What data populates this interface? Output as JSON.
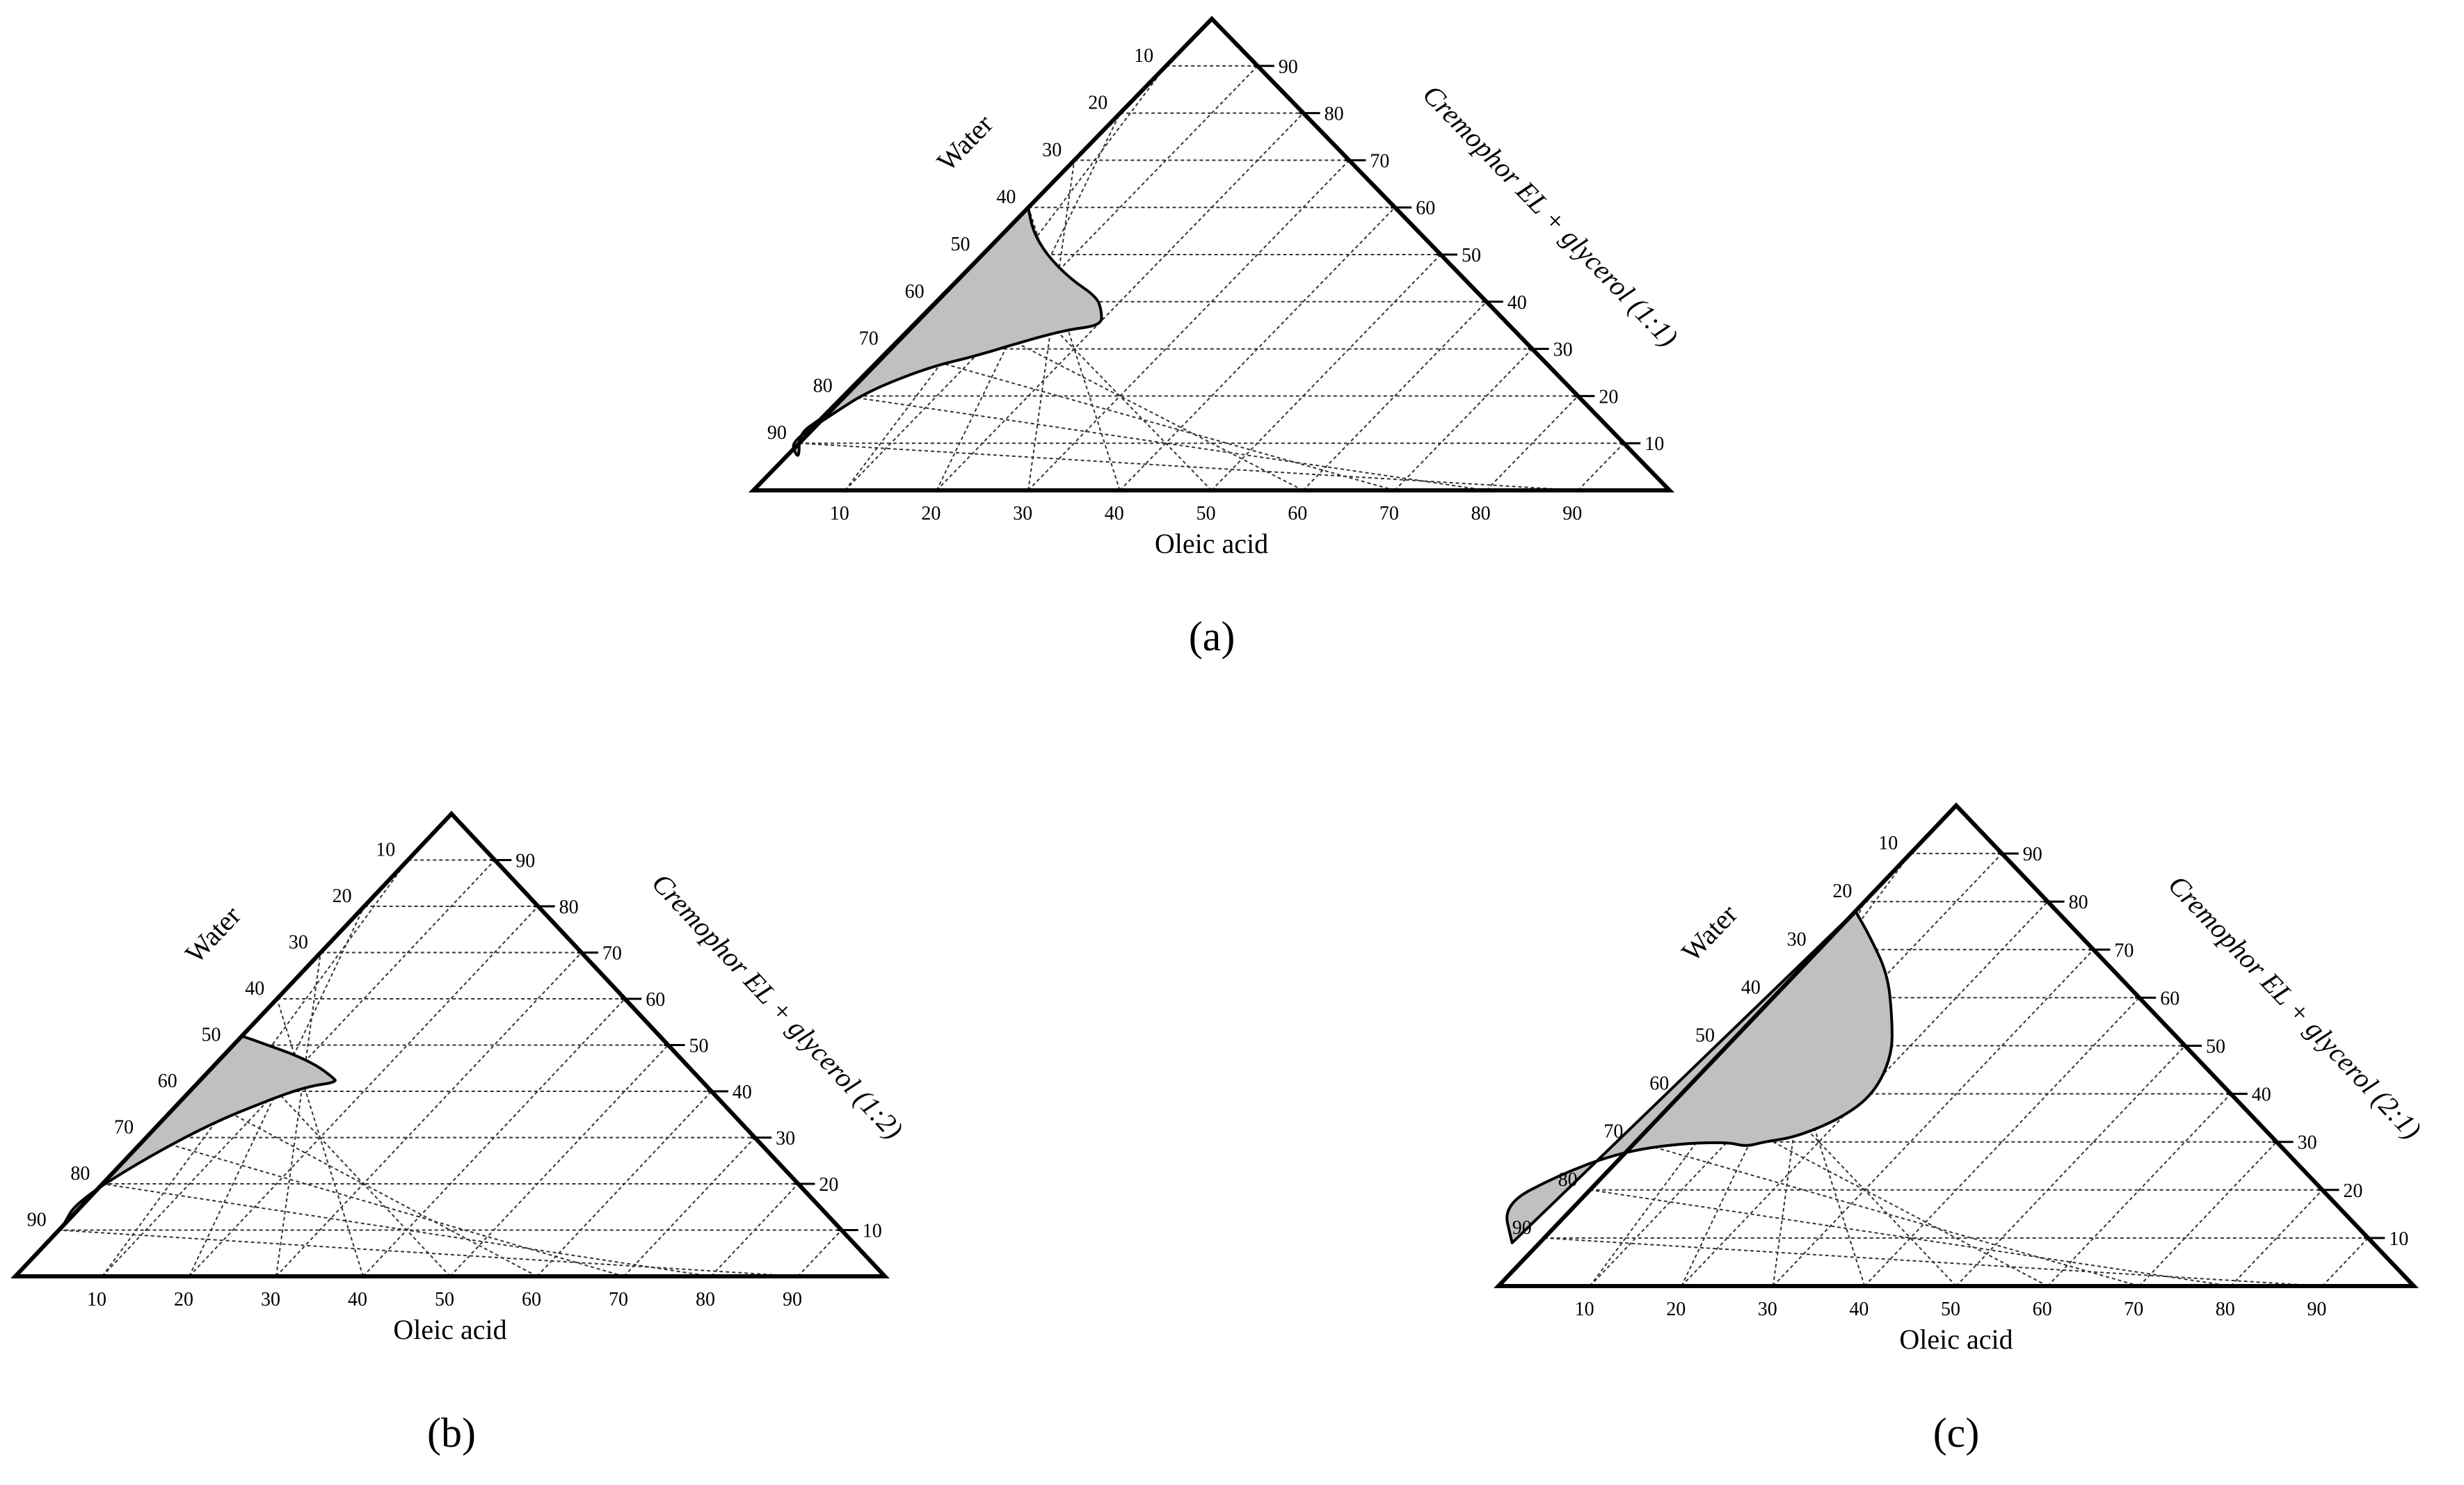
{
  "chart_data": [
    {
      "type": "ternary",
      "panel_label": "(a)",
      "components": {
        "left": "Water",
        "right": "Cremophor EL + glycerol (1:1)",
        "bottom": "Oleic acid"
      },
      "ticks": [
        10,
        20,
        30,
        40,
        50,
        60,
        70,
        80,
        90
      ],
      "grid": true,
      "region": {
        "fill": "#c0c0c0",
        "points": [
          {
            "oleic": 0,
            "smix": 60
          },
          {
            "oleic": 3,
            "smix": 55
          },
          {
            "oleic": 7,
            "smix": 50
          },
          {
            "oleic": 12,
            "smix": 45
          },
          {
            "oleic": 17,
            "smix": 41
          },
          {
            "oleic": 19,
            "smix": 38
          },
          {
            "oleic": 20.5,
            "smix": 35
          },
          {
            "oleic": 17,
            "smix": 34
          },
          {
            "oleic": 13,
            "smix": 31
          },
          {
            "oleic": 10,
            "smix": 28.5
          },
          {
            "oleic": 6,
            "smix": 26
          },
          {
            "oleic": 2,
            "smix": 21
          },
          {
            "oleic": 0.5,
            "smix": 16
          },
          {
            "oleic": -1,
            "smix": 10.5
          },
          {
            "oleic": 0.5,
            "smix": 8
          },
          {
            "oleic": 1.5,
            "smix": 7
          },
          {
            "oleic": -1,
            "smix": 12
          },
          {
            "oleic": -0.3,
            "smix": 15
          }
        ]
      }
    },
    {
      "type": "ternary",
      "panel_label": "(b)",
      "components": {
        "left": "Water",
        "right": "Cremophor EL + glycerol (1:2)",
        "bottom": "Oleic acid"
      },
      "ticks": [
        10,
        20,
        30,
        40,
        50,
        60,
        70,
        80,
        90
      ],
      "grid": true,
      "region": {
        "fill": "#c0c0c0",
        "points": [
          {
            "oleic": 0,
            "smix": 52
          },
          {
            "oleic": 4,
            "smix": 50
          },
          {
            "oleic": 8,
            "smix": 48
          },
          {
            "oleic": 12,
            "smix": 45.5
          },
          {
            "oleic": 15,
            "smix": 43
          },
          {
            "oleic": 16,
            "smix": 42
          },
          {
            "oleic": 13,
            "smix": 41
          },
          {
            "oleic": 10,
            "smix": 38
          },
          {
            "oleic": 6,
            "smix": 33
          },
          {
            "oleic": 2,
            "smix": 25
          },
          {
            "oleic": -1,
            "smix": 16
          },
          {
            "oleic": 0,
            "smix": 11
          }
        ]
      }
    },
    {
      "type": "ternary",
      "panel_label": "(c)",
      "components": {
        "left": "Water",
        "right": "Cremophor EL + glycerol (2:1)",
        "bottom": "Oleic acid"
      },
      "ticks": [
        10,
        20,
        30,
        40,
        50,
        60,
        70,
        80,
        90
      ],
      "grid": true,
      "region": {
        "fill": "#c0c0c0",
        "points": [
          {
            "oleic": 0,
            "smix": 78
          },
          {
            "oleic": 4,
            "smix": 73
          },
          {
            "oleic": 10,
            "smix": 65
          },
          {
            "oleic": 15,
            "smix": 56
          },
          {
            "oleic": 19,
            "smix": 48
          },
          {
            "oleic": 21,
            "smix": 40
          },
          {
            "oleic": 20,
            "smix": 35
          },
          {
            "oleic": 17,
            "smix": 31
          },
          {
            "oleic": 14,
            "smix": 30
          },
          {
            "oleic": 12.5,
            "smix": 29
          },
          {
            "oleic": 10,
            "smix": 30
          },
          {
            "oleic": 4,
            "smix": 29.5
          },
          {
            "oleic": -1,
            "smix": 27.5
          },
          {
            "oleic": -5,
            "smix": 23
          },
          {
            "oleic": -8,
            "smix": 17
          },
          {
            "oleic": -3,
            "smix": 9
          }
        ]
      }
    }
  ]
}
